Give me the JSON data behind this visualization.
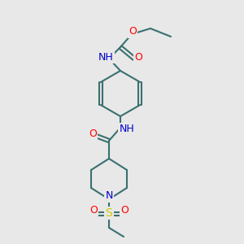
{
  "bg_color": "#e8e8e8",
  "bond_color": "#3a7070",
  "bond_width": 1.5,
  "atom_colors": {
    "N": "#0000cc",
    "O": "#ff0000",
    "S": "#cccc00",
    "C": "#3a7070"
  },
  "font_size": 9,
  "label_font_size": 8.5
}
